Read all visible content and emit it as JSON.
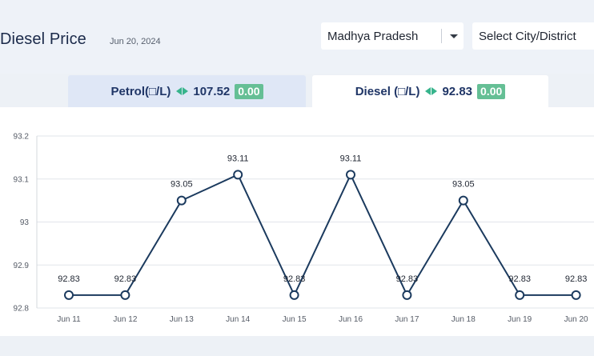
{
  "header": {
    "title": "Diesel Price",
    "date": "Jun 20, 2024",
    "state_select": {
      "value": "Madhya Pradesh",
      "icon": "chevron-down-icon"
    },
    "city_select": {
      "placeholder": "Select City/District"
    }
  },
  "tabs": [
    {
      "label": "Petrol(□/L)",
      "price": "107.52",
      "change": "0.00",
      "active": false
    },
    {
      "label": "Diesel (□/L)",
      "price": "92.83",
      "change": "0.00",
      "active": true
    }
  ],
  "colors": {
    "line": "#1b3a5e",
    "change_badge": "#65bf95",
    "arrow": "#37b48c",
    "title": "#1b2a4a"
  },
  "chart_data": {
    "type": "line",
    "categories": [
      "Jun 11",
      "Jun 12",
      "Jun 13",
      "Jun 14",
      "Jun 15",
      "Jun 16",
      "Jun 17",
      "Jun 18",
      "Jun 19",
      "Jun 20"
    ],
    "values": [
      92.83,
      92.83,
      93.05,
      93.11,
      92.83,
      93.11,
      92.83,
      93.05,
      92.83,
      92.83
    ],
    "data_labels": [
      "92.83",
      "92.83",
      "93.05",
      "93.11",
      "92.83",
      "93.11",
      "92.83",
      "93.05",
      "92.83",
      "92.83"
    ],
    "yticks": [
      "93.2",
      "93.1",
      "93",
      "92.9",
      "92.8"
    ],
    "ylim": [
      92.8,
      93.2
    ],
    "grid": true
  }
}
